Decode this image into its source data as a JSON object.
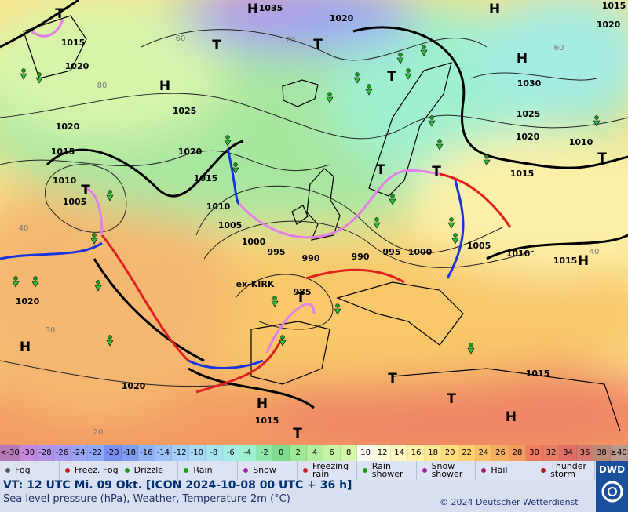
{
  "map": {
    "labels": [
      "H",
      "1035",
      "1020",
      "H",
      "1015",
      "1020",
      "T",
      "1015",
      "1020",
      "T",
      "T",
      "T",
      "H",
      "H",
      "1030",
      "1025",
      "1020",
      "1025",
      "1020",
      "1010",
      "T",
      "1015",
      "1020",
      "1015",
      "1015",
      "1010",
      "1005",
      "T",
      "1010",
      "T",
      "T",
      "1005",
      "1000",
      "995",
      "990",
      "990",
      "995",
      "1000",
      "1005",
      "1010",
      "1015",
      "H",
      "985",
      "T",
      "1020",
      "H",
      "1015",
      "1020",
      "H",
      "T",
      "T",
      "1015",
      "T",
      "H"
    ],
    "isotherm_labels": [
      "60",
      "70",
      "80",
      "40",
      "30",
      "20",
      "60",
      "40"
    ],
    "annotations": [
      "ex-KIRK"
    ]
  },
  "temperature_scale": {
    "labels": [
      "<-30",
      -30,
      -28,
      -26,
      -24,
      -22,
      -20,
      -18,
      -16,
      -14,
      -12,
      -10,
      -8,
      -6,
      -4,
      -2,
      0,
      2,
      4,
      6,
      8,
      10,
      12,
      14,
      16,
      18,
      20,
      22,
      24,
      26,
      28,
      30,
      32,
      34,
      36,
      38,
      "≥40"
    ],
    "colors": [
      "#b77ab7",
      "#c58ae0",
      "#b592ea",
      "#a69bf0",
      "#9ba4f3",
      "#8ea9f5",
      "#7a8ef0",
      "#7f9ef2",
      "#8fb0f5",
      "#9cc1f7",
      "#a6d0f8",
      "#a9dbf6",
      "#a8e4ef",
      "#a4ece4",
      "#9ff0cf",
      "#8fe8a8",
      "#7fdc8c",
      "#9ee896",
      "#b4efa0",
      "#c6f3a4",
      "#d6f5ab",
      "#f8faf0",
      "#fbfad7",
      "#fdf6c0",
      "#fdf0a8",
      "#fde890",
      "#fde07e",
      "#fbd070",
      "#f8bf68",
      "#f5ad62",
      "#f29c60",
      "#ef7c5f",
      "#e87c62",
      "#df6f66",
      "#d4776e",
      "#b98a7a",
      "#b79a90"
    ]
  },
  "weather_legend": [
    "Fog",
    "Freez. Fog",
    "Drizzle",
    "Rain",
    "Snow",
    "Freezing rain",
    "Rain shower",
    "Snow shower",
    "Hail",
    "Thunder storm"
  ],
  "info": {
    "valid_time": "VT: 12 UTC Mi.  09 Okt. [ICON 2024-10-08  00 UTC + 36 h]",
    "description": "Sea level pressure (hPa), Weather, Temperature 2m (°C)",
    "copyright": "© 2024 Deutscher Wetterdienst",
    "logo": "DWD"
  }
}
